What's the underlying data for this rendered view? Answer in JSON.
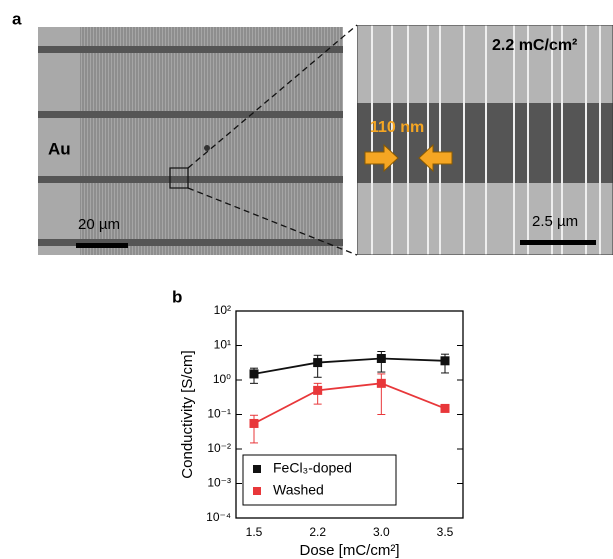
{
  "panel_a": {
    "label": "a",
    "left_image_label": "Au",
    "left_scale_bar": "20 µm",
    "right_dose": "2.2 mC/cm²",
    "gap_label": "110 nm",
    "right_scale_bar": "2.5 µm"
  },
  "chart_data": {
    "type": "scatter",
    "panel_label": "b",
    "x_label": "Dose [mC/cm²]",
    "y_label": "Conductivity [S/cm]",
    "categories": [
      "1.5",
      "2.2",
      "3.0",
      "3.5"
    ],
    "series": [
      {
        "name": "FeCl₃-doped",
        "color": "#111111",
        "values": [
          1.5,
          3.2,
          4.2,
          3.6
        ],
        "errors": [
          0.7,
          2.0,
          2.5,
          2.0
        ]
      },
      {
        "name": "Washed",
        "color": "#e8373a",
        "values": [
          0.055,
          0.5,
          0.8,
          0.15
        ],
        "errors": [
          0.04,
          0.3,
          0.7,
          0.01
        ]
      }
    ],
    "log_y": true,
    "ylim": [
      0.0001,
      100
    ],
    "yticks": [
      {
        "value": 0.0001,
        "label": "10⁻⁴"
      },
      {
        "value": 0.001,
        "label": "10⁻³"
      },
      {
        "value": 0.01,
        "label": "10⁻²"
      },
      {
        "value": 0.1,
        "label": "10⁻¹"
      },
      {
        "value": 1,
        "label": "10⁰"
      },
      {
        "value": 10,
        "label": "10¹"
      },
      {
        "value": 100,
        "label": "10²"
      }
    ],
    "legend": "lower left"
  }
}
